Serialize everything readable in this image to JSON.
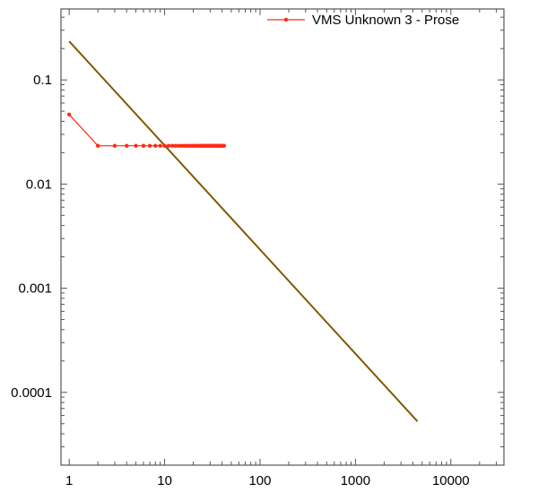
{
  "chart_data": {
    "type": "line",
    "title": "",
    "xlabel": "",
    "ylabel": "",
    "x_scale": "log",
    "y_scale": "log",
    "xlim": [
      0.82,
      36000
    ],
    "ylim": [
      2e-05,
      0.48
    ],
    "grid": false,
    "legend_position": "top-right",
    "x_ticks": [
      {
        "v": 1,
        "label": "1"
      },
      {
        "v": 10,
        "label": "10"
      },
      {
        "v": 100,
        "label": "100"
      },
      {
        "v": 1000,
        "label": "1000"
      },
      {
        "v": 10000,
        "label": "10000"
      }
    ],
    "y_ticks": [
      {
        "v": 0.1,
        "label": "0.1"
      },
      {
        "v": 0.01,
        "label": "0.01"
      },
      {
        "v": 0.001,
        "label": "0.001"
      },
      {
        "v": 0.0001,
        "label": "0.0001"
      }
    ],
    "series": [
      {
        "name": "VMS Unknown 3 - Prose",
        "color": "#ff2a10",
        "markers": true,
        "x_range": [
          1,
          42
        ],
        "first_value": 0.0465,
        "other_values": 0.0233
      },
      {
        "color": "#7f5a00",
        "markers": false,
        "function": "0.235/x",
        "x_range": [
          1,
          4470
        ]
      }
    ]
  }
}
